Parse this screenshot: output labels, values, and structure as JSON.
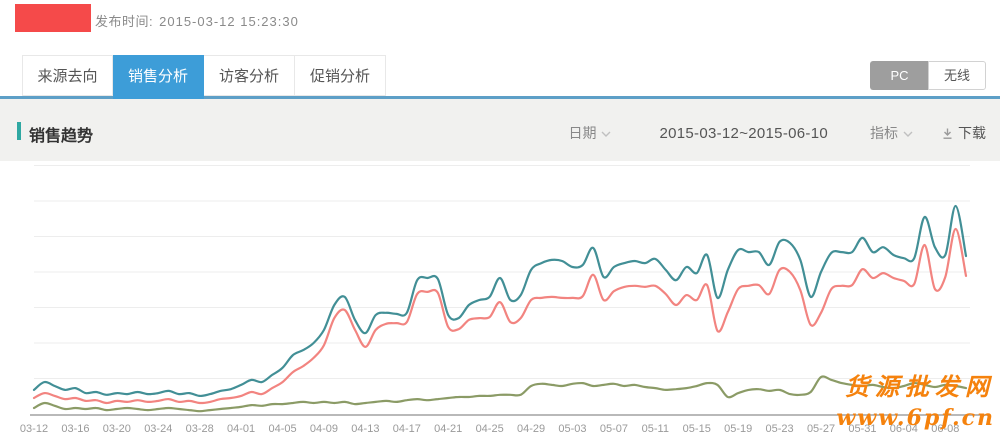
{
  "header": {
    "publish_time_label": "发布时间:",
    "publish_time_value": "2015-03-12 15:23:30"
  },
  "tabs": [
    {
      "label": "来源去向",
      "active": false
    },
    {
      "label": "销售分析",
      "active": true
    },
    {
      "label": "访客分析",
      "active": false
    },
    {
      "label": "促销分析",
      "active": false
    }
  ],
  "platform_toggle": [
    {
      "label": "PC",
      "active": true
    },
    {
      "label": "无线",
      "active": false
    }
  ],
  "section": {
    "title": "销售趋势",
    "date_dropdown_label": "日期",
    "date_range": "2015-03-12~2015-06-10",
    "metric_dropdown_label": "指标",
    "download_label": "下载"
  },
  "watermark": {
    "line1": "货源批发网",
    "line2": "www.6pf.cn"
  },
  "colors": {
    "logo_red": "#f54a4a",
    "active_tab_blue": "#3d9dd8",
    "tab_underline_blue": "#5d9fc7",
    "section_band_gray": "#f1f1ef",
    "title_accent_teal": "#2fa8a2",
    "platform_active_gray": "#9e9e9e",
    "watermark_orange": "#f5820d",
    "axis_gray": "#b9b9b9",
    "gridline_gray": "#ededed",
    "tick_label_gray": "#9a9a9a"
  },
  "chart_data": {
    "type": "line",
    "title": "销售趋势",
    "x_start_date": "2015-03-12",
    "x_end_date": "2015-06-10",
    "x_interval_days_between_ticks": 4,
    "x_tick_labels": [
      "03-12",
      "03-16",
      "03-20",
      "03-24",
      "03-28",
      "04-01",
      "04-05",
      "04-09",
      "04-13",
      "04-17",
      "04-21",
      "04-25",
      "04-29",
      "05-03",
      "05-07",
      "05-11",
      "05-15",
      "05-19",
      "05-23",
      "05-27",
      "05-31",
      "06-04",
      "06-08"
    ],
    "grid": true,
    "legend": "none",
    "y_axis_labels_visible": false,
    "y_unit": "relative gridline units (no numeric y labels shown)",
    "ylim": [
      0,
      7
    ],
    "series": [
      {
        "name": "series-teal",
        "color": "#428f96",
        "values": [
          0.68,
          0.9,
          0.79,
          0.68,
          0.73,
          0.59,
          0.62,
          0.54,
          0.59,
          0.56,
          0.62,
          0.56,
          0.59,
          0.65,
          0.56,
          0.59,
          0.51,
          0.56,
          0.65,
          0.7,
          0.82,
          0.96,
          0.9,
          1.1,
          1.3,
          1.66,
          1.8,
          2.0,
          2.37,
          3.07,
          3.3,
          2.65,
          2.28,
          2.79,
          2.85,
          2.82,
          2.85,
          3.77,
          3.83,
          3.8,
          2.79,
          2.7,
          3.07,
          3.21,
          3.3,
          3.83,
          3.21,
          3.35,
          4.06,
          4.25,
          4.34,
          4.31,
          4.14,
          4.2,
          4.68,
          3.86,
          4.14,
          4.25,
          4.31,
          4.25,
          4.37,
          4.06,
          3.77,
          4.14,
          3.97,
          4.48,
          3.27,
          4.06,
          4.62,
          4.56,
          4.56,
          4.2,
          4.85,
          4.82,
          4.34,
          3.3,
          4.0,
          4.54,
          4.56,
          4.56,
          4.96,
          4.56,
          4.7,
          4.48,
          4.39,
          4.39,
          5.55,
          4.7,
          4.48,
          5.86,
          4.45
        ]
      },
      {
        "name": "series-red",
        "color": "#f28480",
        "values": [
          0.45,
          0.59,
          0.51,
          0.42,
          0.45,
          0.37,
          0.39,
          0.31,
          0.37,
          0.34,
          0.39,
          0.34,
          0.37,
          0.42,
          0.34,
          0.37,
          0.31,
          0.34,
          0.42,
          0.45,
          0.51,
          0.62,
          0.56,
          0.73,
          0.9,
          1.18,
          1.35,
          1.58,
          1.94,
          2.7,
          2.93,
          2.37,
          1.89,
          2.37,
          2.54,
          2.56,
          2.59,
          3.38,
          3.44,
          3.41,
          2.45,
          2.39,
          2.65,
          2.7,
          2.73,
          3.15,
          2.59,
          2.7,
          3.21,
          3.27,
          3.3,
          3.27,
          3.27,
          3.32,
          3.92,
          3.21,
          3.46,
          3.58,
          3.61,
          3.58,
          3.61,
          3.38,
          3.07,
          3.35,
          3.21,
          3.63,
          2.34,
          2.87,
          3.52,
          3.61,
          3.63,
          3.38,
          4.06,
          4.0,
          3.49,
          2.51,
          2.85,
          3.52,
          3.61,
          3.63,
          4.08,
          3.83,
          3.97,
          3.83,
          3.75,
          3.66,
          4.76,
          3.52,
          3.86,
          5.21,
          3.89
        ]
      },
      {
        "name": "series-olive",
        "color": "#8b9b66",
        "values": [
          0.17,
          0.31,
          0.23,
          0.14,
          0.17,
          0.14,
          0.17,
          0.11,
          0.14,
          0.17,
          0.14,
          0.11,
          0.14,
          0.17,
          0.14,
          0.11,
          0.08,
          0.11,
          0.14,
          0.17,
          0.2,
          0.25,
          0.23,
          0.28,
          0.28,
          0.31,
          0.34,
          0.31,
          0.34,
          0.31,
          0.34,
          0.28,
          0.31,
          0.34,
          0.37,
          0.34,
          0.39,
          0.42,
          0.39,
          0.42,
          0.45,
          0.48,
          0.48,
          0.51,
          0.51,
          0.54,
          0.54,
          0.54,
          0.79,
          0.85,
          0.82,
          0.79,
          0.85,
          0.87,
          0.79,
          0.82,
          0.85,
          0.79,
          0.82,
          0.76,
          0.73,
          0.68,
          0.7,
          0.73,
          0.79,
          0.87,
          0.82,
          0.48,
          0.59,
          0.68,
          0.7,
          0.65,
          0.68,
          0.56,
          0.54,
          0.62,
          1.04,
          0.96,
          0.87,
          0.82,
          0.79,
          0.82,
          0.76,
          0.73,
          0.79,
          0.87,
          0.82,
          0.76,
          0.82,
          0.79,
          0.73
        ]
      }
    ]
  }
}
